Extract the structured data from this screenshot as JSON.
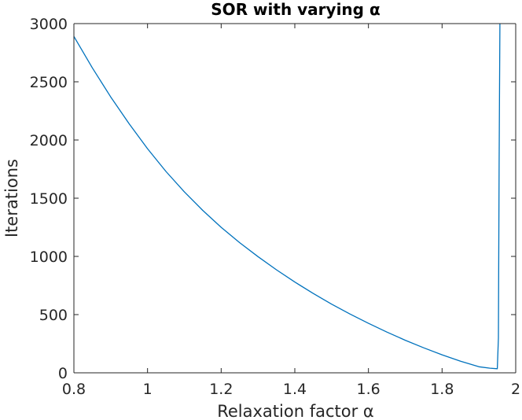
{
  "chart_data": {
    "type": "line",
    "title": "SOR with varying α",
    "xlabel": "Relaxation factor α",
    "ylabel": "Iterations",
    "xlim": [
      0.8,
      2.0
    ],
    "ylim": [
      0,
      3000
    ],
    "grid": false,
    "x_ticks": [
      0.8,
      1.0,
      1.2,
      1.4,
      1.6,
      1.8,
      2.0
    ],
    "x_tick_labels": [
      "0.8",
      "1",
      "1.2",
      "1.4",
      "1.6",
      "1.8",
      "2"
    ],
    "y_ticks": [
      0,
      500,
      1000,
      1500,
      2000,
      2500,
      3000
    ],
    "y_tick_labels": [
      "0",
      "500",
      "1000",
      "1500",
      "2000",
      "2500",
      "3000"
    ],
    "series": [
      {
        "color": "#0072bd",
        "x": [
          0.8,
          0.85,
          0.9,
          0.95,
          1.0,
          1.05,
          1.1,
          1.15,
          1.2,
          1.25,
          1.3,
          1.35,
          1.4,
          1.45,
          1.5,
          1.55,
          1.6,
          1.65,
          1.7,
          1.75,
          1.8,
          1.85,
          1.9,
          1.93,
          1.95,
          1.953,
          1.955,
          1.957
        ],
        "y": [
          2890,
          2620,
          2370,
          2140,
          1925,
          1730,
          1555,
          1395,
          1250,
          1118,
          998,
          885,
          780,
          682,
          590,
          505,
          425,
          350,
          280,
          215,
          155,
          100,
          52,
          40,
          35,
          300,
          1800,
          3000
        ]
      }
    ]
  }
}
